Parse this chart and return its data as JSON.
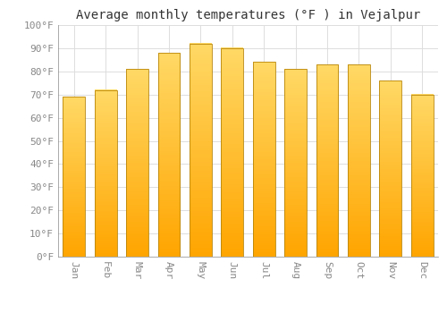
{
  "title": "Average monthly temperatures (°F ) in Vejalpur",
  "months": [
    "Jan",
    "Feb",
    "Mar",
    "Apr",
    "May",
    "Jun",
    "Jul",
    "Aug",
    "Sep",
    "Oct",
    "Nov",
    "Dec"
  ],
  "values": [
    69,
    72,
    81,
    88,
    92,
    90,
    84,
    81,
    83,
    83,
    76,
    70
  ],
  "bar_color_top": "#FFA500",
  "bar_color_bottom": "#FFD966",
  "bar_edge_color": "#B8860B",
  "ylim": [
    0,
    100
  ],
  "ytick_step": 10,
  "background_color": "#FFFFFF",
  "grid_color": "#DDDDDD",
  "title_fontsize": 10,
  "tick_fontsize": 8,
  "font_family": "monospace"
}
